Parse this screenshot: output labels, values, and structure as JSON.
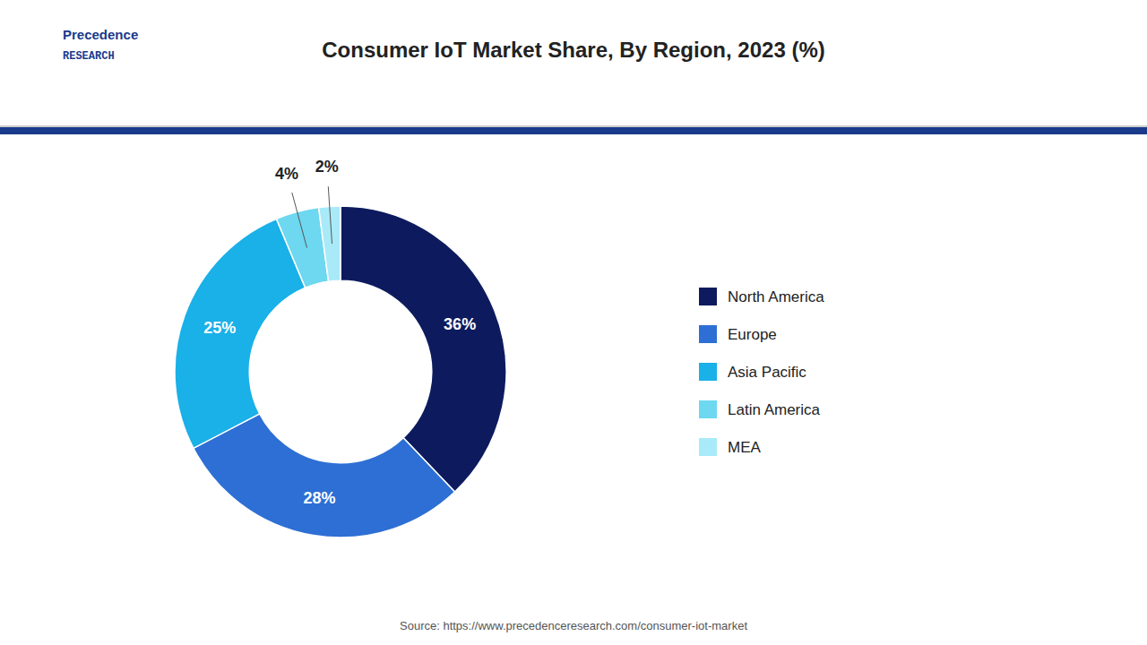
{
  "chart_data": {
    "type": "donut",
    "title": "Consumer IoT Market Share, By Region, 2023 (%)",
    "categories": [
      "North America",
      "Europe",
      "Asia Pacific",
      "Latin America",
      "MEA"
    ],
    "values": [
      36,
      28,
      25,
      4,
      2
    ],
    "value_labels": [
      "36%",
      "28%",
      "25%",
      "4%",
      "2%"
    ],
    "colors": [
      "#0d1b5e",
      "#2d6fd4",
      "#1ab0e8",
      "#6dd8f0",
      "#a8eaf8"
    ],
    "data_labels": true,
    "legend": "right",
    "annotations": [
      "Precedence",
      "RESEARCH",
      "Source: https://www.precedenceresearch.com/consumer-iot-market"
    ]
  }
}
